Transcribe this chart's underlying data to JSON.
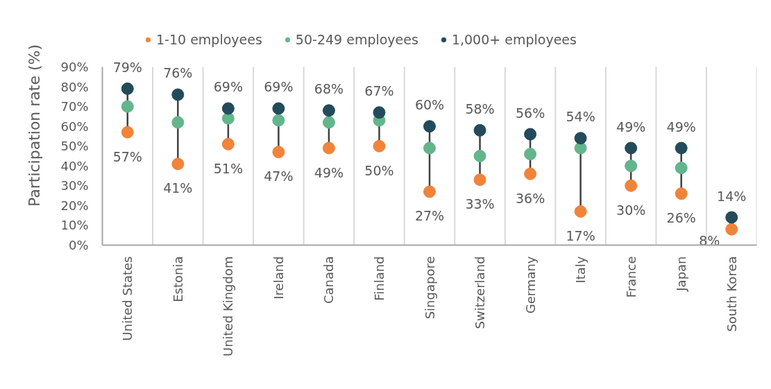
{
  "chart_data": {
    "type": "scatter",
    "ylabel": "Participation rate (%)",
    "categories": [
      "United States",
      "Estonia",
      "United Kingdom",
      "Ireland",
      "Canada",
      "Finland",
      "Singapore",
      "Switzerland",
      "Germany",
      "Italy",
      "France",
      "Japan",
      "South Korea"
    ],
    "series": [
      {
        "name": "1-10 employees",
        "color": "#f0843a",
        "values": [
          57,
          41,
          51,
          47,
          49,
          50,
          27,
          33,
          36,
          17,
          30,
          26,
          8
        ],
        "value_labels": [
          "57%",
          "41%",
          "51%",
          "47%",
          "49%",
          "50%",
          "27%",
          "33%",
          "36%",
          "17%",
          "30%",
          "26%",
          "8%"
        ]
      },
      {
        "name": "50-249 employees",
        "color": "#63b58c",
        "values": [
          70,
          62,
          64,
          63,
          62,
          63,
          49,
          45,
          46,
          49,
          40,
          39,
          null
        ]
      },
      {
        "name": "1,000+ employees",
        "color": "#234b5a",
        "values": [
          79,
          76,
          69,
          69,
          68,
          67,
          60,
          58,
          56,
          54,
          49,
          49,
          14
        ],
        "value_labels": [
          "79%",
          "76%",
          "69%",
          "69%",
          "68%",
          "67%",
          "60%",
          "58%",
          "56%",
          "54%",
          "49%",
          "49%",
          "14%"
        ]
      }
    ],
    "ylim": [
      0,
      90
    ],
    "yticks": [
      {
        "value": 0,
        "label": "0%"
      },
      {
        "value": 10,
        "label": "10%"
      },
      {
        "value": 20,
        "label": "20%"
      },
      {
        "value": 30,
        "label": "30%"
      },
      {
        "value": 40,
        "label": "40%"
      },
      {
        "value": 50,
        "label": "50%"
      },
      {
        "value": 60,
        "label": "60%"
      },
      {
        "value": 70,
        "label": "70%"
      },
      {
        "value": 80,
        "label": "80%"
      },
      {
        "value": 90,
        "label": "90%"
      }
    ],
    "grid": "x",
    "legend": "top",
    "marker": "circle"
  }
}
